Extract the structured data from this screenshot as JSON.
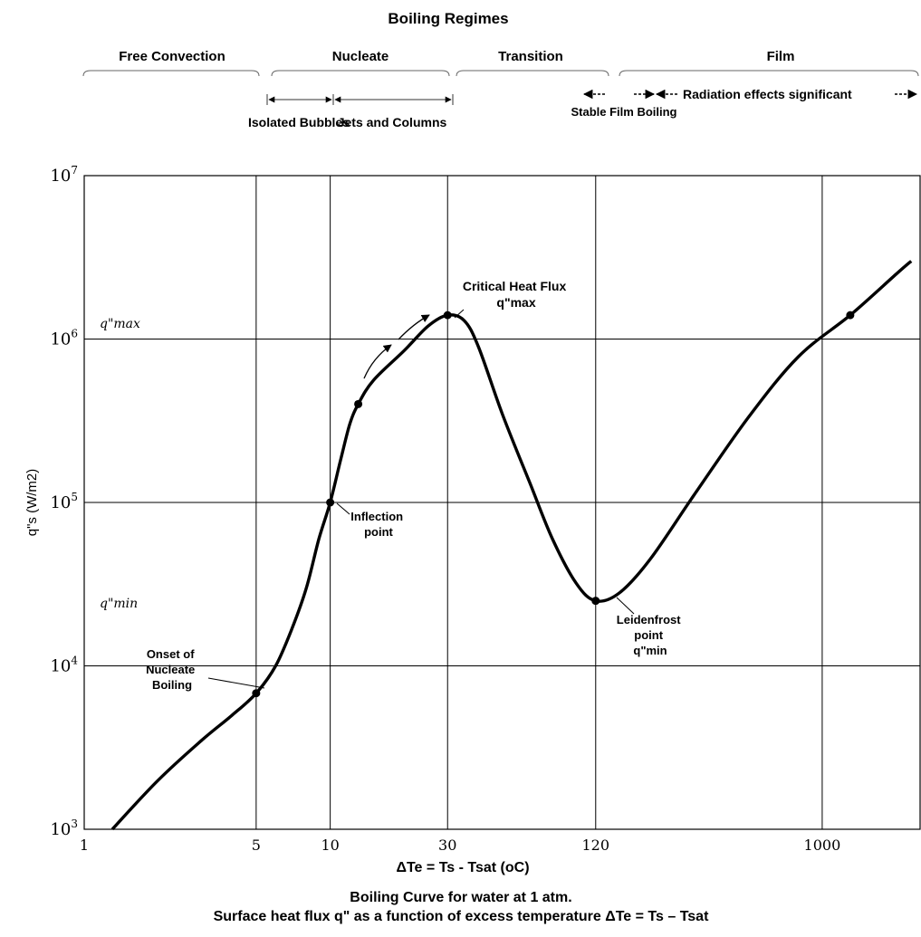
{
  "chart_data": {
    "type": "line",
    "title": "Boiling Regimes",
    "caption_line1": "Boiling Curve for water at 1 atm.",
    "caption_line2": "Surface heat flux q\" as a function of excess temperature ΔTe = Ts – Tsat",
    "xlabel": "ΔTe = Ts - Tsat (oC)",
    "ylabel": "q\"s (W/m2)",
    "x_scale": "log",
    "y_scale": "log",
    "xlim": [
      1,
      2500
    ],
    "ylim": [
      1000,
      10000000
    ],
    "grid": true,
    "x_tick_labels": [
      "1",
      "5",
      "10",
      "30",
      "120",
      "1000"
    ],
    "x_ticks": [
      1,
      5,
      10,
      30,
      120,
      1000
    ],
    "y_ticks": [
      1000,
      10000,
      100000,
      1000000,
      10000000
    ],
    "y_tick_labels": [
      "10^3",
      "10^4",
      "10^5",
      "10^6",
      "10^7"
    ],
    "y_annotations": [
      {
        "label": "q\"max",
        "value": 1400000
      },
      {
        "label": "q\"min",
        "value": 25000
      }
    ],
    "regimes": [
      {
        "name": "Free Convection",
        "from": 1,
        "to": 5
      },
      {
        "name": "Nucleate",
        "from": 5,
        "to": 30
      },
      {
        "name": "Transition",
        "from": 30,
        "to": 120
      },
      {
        "name": "Film",
        "from": 120,
        "to": 2500
      }
    ],
    "sub_regimes": [
      {
        "name": "Isolated Bubbles",
        "from": 5,
        "to": 10
      },
      {
        "name": "Jets and Columns",
        "from": 10,
        "to": 30
      }
    ],
    "film_notes": {
      "stable": "Stable Film Boiling",
      "radiation": "Radiation effects significant"
    },
    "series": [
      {
        "values": [
          [
            1.3,
            1000
          ],
          [
            2,
            2000
          ],
          [
            3,
            3500
          ],
          [
            4,
            5000
          ],
          [
            5,
            6800
          ],
          [
            6,
            10000
          ],
          [
            7,
            17000
          ],
          [
            8,
            30000
          ],
          [
            9,
            60000
          ],
          [
            10,
            100000
          ],
          [
            11,
            180000
          ],
          [
            12,
            300000
          ],
          [
            13,
            400000
          ],
          [
            15,
            560000
          ],
          [
            20,
            850000
          ],
          [
            25,
            1200000
          ],
          [
            30,
            1400000
          ],
          [
            35,
            1300000
          ],
          [
            40,
            900000
          ],
          [
            50,
            350000
          ],
          [
            65,
            130000
          ],
          [
            80,
            60000
          ],
          [
            100,
            32000
          ],
          [
            120,
            25000
          ],
          [
            150,
            28000
          ],
          [
            200,
            45000
          ],
          [
            300,
            110000
          ],
          [
            500,
            330000
          ],
          [
            800,
            780000
          ],
          [
            1300,
            1400000
          ],
          [
            2000,
            2500000
          ],
          [
            2300,
            3000000
          ]
        ]
      }
    ],
    "points": [
      {
        "label": "Onset of Nucleate Boiling",
        "x": 5,
        "y": 6800
      },
      {
        "label": "Inflection point",
        "x": 10,
        "y": 100000
      },
      {
        "label": "",
        "x": 13,
        "y": 400000
      },
      {
        "label": "Critical Heat Flux q\"max",
        "x": 30,
        "y": 1400000
      },
      {
        "label": "Leidenfrost point q\"min",
        "x": 120,
        "y": 25000
      },
      {
        "label": "",
        "x": 1300,
        "y": 1400000
      }
    ]
  }
}
